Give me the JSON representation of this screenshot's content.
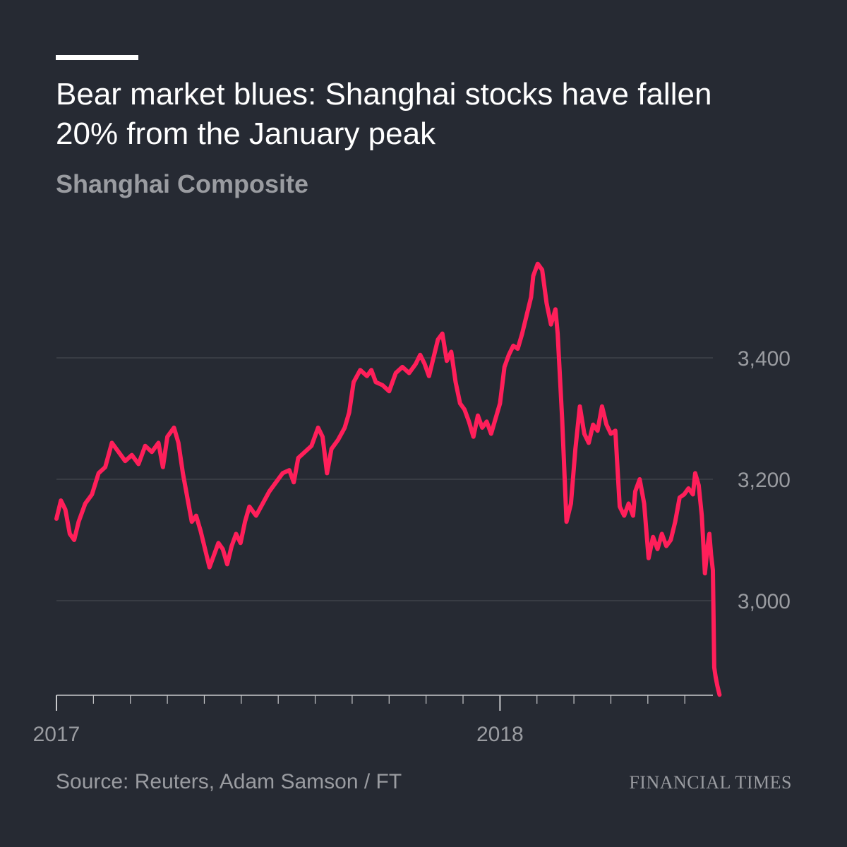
{
  "title": "Bear market blues: Shanghai stocks have fallen 20% from the January peak",
  "subtitle": "Shanghai Composite",
  "source": "Source: Reuters, Adam Samson / FT",
  "brand": "Financial Times",
  "colors": {
    "background": "#262a33",
    "line": "#ff1f5a",
    "grid": "#4a4e56",
    "text_secondary": "#9a9ca1"
  },
  "chart_data": {
    "type": "line",
    "title": "Bear market blues: Shanghai stocks have fallen 20% from the January peak",
    "subtitle": "Shanghai Composite",
    "x_ticks": [
      {
        "value": 2017.0,
        "label": "2017"
      },
      {
        "value": 2018.0,
        "label": "2018"
      }
    ],
    "y_ticks": [
      {
        "value": 3000,
        "label": "3,000"
      },
      {
        "value": 3200,
        "label": "3,200"
      },
      {
        "value": 3400,
        "label": "3,400"
      }
    ],
    "xlim": [
      2017.0,
      2018.48
    ],
    "ylim": [
      2850,
      3600
    ],
    "grid": true,
    "series": [
      {
        "values": [
          [
            2017.0,
            3135
          ],
          [
            2017.01,
            3165
          ],
          [
            2017.02,
            3150
          ],
          [
            2017.03,
            3110
          ],
          [
            2017.04,
            3100
          ],
          [
            2017.05,
            3130
          ],
          [
            2017.065,
            3160
          ],
          [
            2017.08,
            3175
          ],
          [
            2017.095,
            3210
          ],
          [
            2017.11,
            3220
          ],
          [
            2017.125,
            3260
          ],
          [
            2017.14,
            3245
          ],
          [
            2017.155,
            3230
          ],
          [
            2017.17,
            3240
          ],
          [
            2017.185,
            3225
          ],
          [
            2017.2,
            3255
          ],
          [
            2017.215,
            3245
          ],
          [
            2017.23,
            3260
          ],
          [
            2017.24,
            3220
          ],
          [
            2017.25,
            3270
          ],
          [
            2017.265,
            3285
          ],
          [
            2017.275,
            3260
          ],
          [
            2017.285,
            3210
          ],
          [
            2017.295,
            3170
          ],
          [
            2017.305,
            3130
          ],
          [
            2017.315,
            3140
          ],
          [
            2017.325,
            3115
          ],
          [
            2017.335,
            3085
          ],
          [
            2017.345,
            3055
          ],
          [
            2017.355,
            3075
          ],
          [
            2017.365,
            3095
          ],
          [
            2017.375,
            3085
          ],
          [
            2017.385,
            3060
          ],
          [
            2017.395,
            3090
          ],
          [
            2017.405,
            3110
          ],
          [
            2017.415,
            3095
          ],
          [
            2017.425,
            3130
          ],
          [
            2017.435,
            3155
          ],
          [
            2017.45,
            3140
          ],
          [
            2017.465,
            3160
          ],
          [
            2017.48,
            3180
          ],
          [
            2017.495,
            3195
          ],
          [
            2017.51,
            3210
          ],
          [
            2017.525,
            3215
          ],
          [
            2017.535,
            3195
          ],
          [
            2017.545,
            3235
          ],
          [
            2017.56,
            3245
          ],
          [
            2017.575,
            3255
          ],
          [
            2017.59,
            3285
          ],
          [
            2017.6,
            3270
          ],
          [
            2017.61,
            3210
          ],
          [
            2017.62,
            3250
          ],
          [
            2017.635,
            3265
          ],
          [
            2017.65,
            3285
          ],
          [
            2017.66,
            3310
          ],
          [
            2017.67,
            3360
          ],
          [
            2017.685,
            3380
          ],
          [
            2017.7,
            3370
          ],
          [
            2017.71,
            3380
          ],
          [
            2017.72,
            3360
          ],
          [
            2017.735,
            3355
          ],
          [
            2017.75,
            3345
          ],
          [
            2017.765,
            3375
          ],
          [
            2017.78,
            3385
          ],
          [
            2017.795,
            3375
          ],
          [
            2017.81,
            3390
          ],
          [
            2017.82,
            3405
          ],
          [
            2017.83,
            3390
          ],
          [
            2017.84,
            3370
          ],
          [
            2017.85,
            3400
          ],
          [
            2017.86,
            3430
          ],
          [
            2017.87,
            3440
          ],
          [
            2017.88,
            3395
          ],
          [
            2017.89,
            3410
          ],
          [
            2017.9,
            3360
          ],
          [
            2017.91,
            3325
          ],
          [
            2017.92,
            3315
          ],
          [
            2017.93,
            3295
          ],
          [
            2017.94,
            3270
          ],
          [
            2017.95,
            3305
          ],
          [
            2017.96,
            3285
          ],
          [
            2017.97,
            3295
          ],
          [
            2017.98,
            3275
          ],
          [
            2017.99,
            3300
          ],
          [
            2018.0,
            3325
          ],
          [
            2018.01,
            3385
          ],
          [
            2018.02,
            3405
          ],
          [
            2018.03,
            3420
          ],
          [
            2018.04,
            3415
          ],
          [
            2018.05,
            3440
          ],
          [
            2018.06,
            3470
          ],
          [
            2018.07,
            3500
          ],
          [
            2018.075,
            3535
          ],
          [
            2018.085,
            3555
          ],
          [
            2018.095,
            3545
          ],
          [
            2018.105,
            3490
          ],
          [
            2018.115,
            3455
          ],
          [
            2018.125,
            3480
          ],
          [
            2018.13,
            3440
          ],
          [
            2018.14,
            3300
          ],
          [
            2018.15,
            3130
          ],
          [
            2018.16,
            3160
          ],
          [
            2018.17,
            3250
          ],
          [
            2018.18,
            3320
          ],
          [
            2018.19,
            3275
          ],
          [
            2018.2,
            3260
          ],
          [
            2018.21,
            3290
          ],
          [
            2018.22,
            3280
          ],
          [
            2018.23,
            3320
          ],
          [
            2018.24,
            3290
          ],
          [
            2018.25,
            3275
          ],
          [
            2018.26,
            3280
          ],
          [
            2018.27,
            3155
          ],
          [
            2018.28,
            3140
          ],
          [
            2018.29,
            3160
          ],
          [
            2018.3,
            3140
          ],
          [
            2018.305,
            3180
          ],
          [
            2018.315,
            3200
          ],
          [
            2018.325,
            3160
          ],
          [
            2018.335,
            3070
          ],
          [
            2018.345,
            3105
          ],
          [
            2018.355,
            3085
          ],
          [
            2018.365,
            3110
          ],
          [
            2018.375,
            3090
          ],
          [
            2018.385,
            3100
          ],
          [
            2018.395,
            3130
          ],
          [
            2018.405,
            3170
          ],
          [
            2018.415,
            3175
          ],
          [
            2018.425,
            3185
          ],
          [
            2018.435,
            3175
          ],
          [
            2018.44,
            3210
          ],
          [
            2018.448,
            3190
          ],
          [
            2018.455,
            3140
          ],
          [
            2018.462,
            3045
          ],
          [
            2018.468,
            3090
          ],
          [
            2018.472,
            3110
          ],
          [
            2018.476,
            3075
          ],
          [
            2018.48,
            3050
          ],
          [
            2018.483,
            2890
          ],
          [
            2018.486,
            2875
          ],
          [
            2018.49,
            2860
          ],
          [
            2018.495,
            2845
          ]
        ]
      }
    ]
  }
}
